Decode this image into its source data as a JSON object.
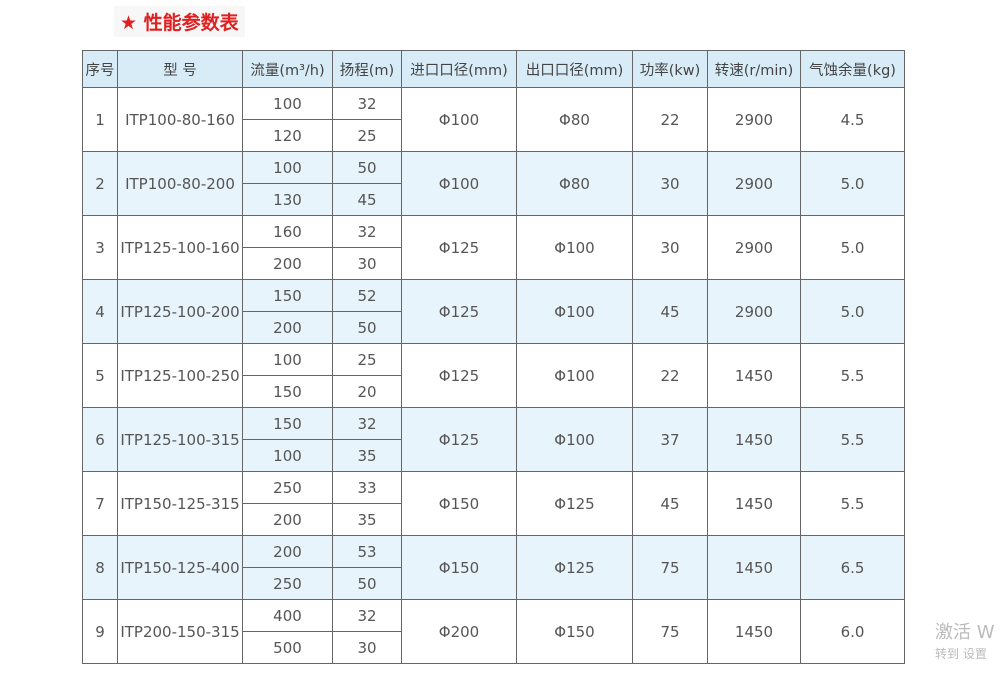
{
  "title": "★ 性能参数表",
  "headers": [
    "序号",
    "型 号",
    "流量(m³/h)",
    "扬程(m)",
    "进口口径(mm)",
    "出口口径(mm)",
    "功率(kw)",
    "转速(r/min)",
    "气蚀余量(kg)"
  ],
  "rows": [
    {
      "no": "1",
      "model": "ITP100-80-160",
      "flow": [
        "100",
        "120"
      ],
      "head": [
        "32",
        "25"
      ],
      "inlet": "Φ100",
      "outlet": "Φ80",
      "power": "22",
      "speed": "2900",
      "npsh": "4.5"
    },
    {
      "no": "2",
      "model": "ITP100-80-200",
      "flow": [
        "100",
        "130"
      ],
      "head": [
        "50",
        "45"
      ],
      "inlet": "Φ100",
      "outlet": "Φ80",
      "power": "30",
      "speed": "2900",
      "npsh": "5.0"
    },
    {
      "no": "3",
      "model": "ITP125-100-160",
      "flow": [
        "160",
        "200"
      ],
      "head": [
        "32",
        "30"
      ],
      "inlet": "Φ125",
      "outlet": "Φ100",
      "power": "30",
      "speed": "2900",
      "npsh": "5.0"
    },
    {
      "no": "4",
      "model": "ITP125-100-200",
      "flow": [
        "150",
        "200"
      ],
      "head": [
        "52",
        "50"
      ],
      "inlet": "Φ125",
      "outlet": "Φ100",
      "power": "45",
      "speed": "2900",
      "npsh": "5.0"
    },
    {
      "no": "5",
      "model": "ITP125-100-250",
      "flow": [
        "100",
        "150"
      ],
      "head": [
        "25",
        "20"
      ],
      "inlet": "Φ125",
      "outlet": "Φ100",
      "power": "22",
      "speed": "1450",
      "npsh": "5.5"
    },
    {
      "no": "6",
      "model": "ITP125-100-315",
      "flow": [
        "150",
        "100"
      ],
      "head": [
        "32",
        "35"
      ],
      "inlet": "Φ125",
      "outlet": "Φ100",
      "power": "37",
      "speed": "1450",
      "npsh": "5.5"
    },
    {
      "no": "7",
      "model": "ITP150-125-315",
      "flow": [
        "250",
        "200"
      ],
      "head": [
        "33",
        "35"
      ],
      "inlet": "Φ150",
      "outlet": "Φ125",
      "power": "45",
      "speed": "1450",
      "npsh": "5.5"
    },
    {
      "no": "8",
      "model": "ITP150-125-400",
      "flow": [
        "200",
        "250"
      ],
      "head": [
        "53",
        "50"
      ],
      "inlet": "Φ150",
      "outlet": "Φ125",
      "power": "75",
      "speed": "1450",
      "npsh": "6.5"
    },
    {
      "no": "9",
      "model": "ITP200-150-315",
      "flow": [
        "400",
        "500"
      ],
      "head": [
        "32",
        "30"
      ],
      "inlet": "Φ200",
      "outlet": "Φ150",
      "power": "75",
      "speed": "1450",
      "npsh": "6.0"
    }
  ],
  "watermark": {
    "line1": "激活 W",
    "line2": "转到 设置"
  }
}
